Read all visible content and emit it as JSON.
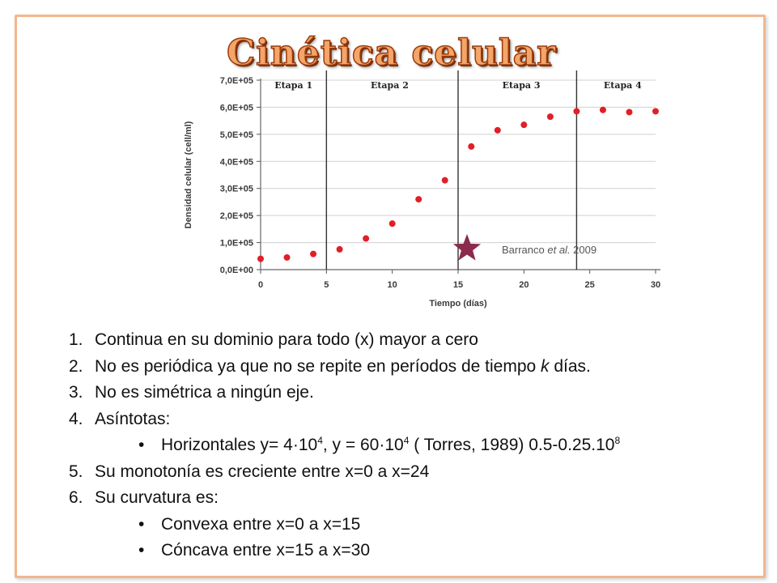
{
  "slide": {
    "title": "Cinética celular"
  },
  "chart_data": {
    "type": "scatter",
    "xlabel": "Tiempo (días)",
    "ylabel": "Densidad celular (cell/ml)",
    "xlim": [
      0,
      30
    ],
    "ylim": [
      0,
      700000
    ],
    "x_ticks": [
      "0",
      "5",
      "10",
      "15",
      "20",
      "25",
      "30"
    ],
    "y_ticks": [
      "0,0E+00",
      "1,0E+05",
      "2,0E+05",
      "3,0E+05",
      "4,0E+05",
      "5,0E+05",
      "6,0E+05",
      "7,0E+05"
    ],
    "grid": true,
    "marker_color": "#e01f26",
    "series": [
      {
        "x": [
          0,
          2,
          4,
          6,
          8,
          10,
          12,
          14,
          16,
          18,
          20,
          22,
          24,
          26,
          28,
          30
        ],
        "y": [
          40000,
          45000,
          58000,
          75000,
          115000,
          170000,
          260000,
          330000,
          455000,
          515000,
          535000,
          565000,
          585000,
          590000,
          582000,
          585000
        ]
      }
    ],
    "stage_boundaries": [
      5,
      15,
      24
    ],
    "stages": [
      {
        "label": "Etapa 1",
        "x": 2.5
      },
      {
        "label": "Etapa 2",
        "x": 9.8
      },
      {
        "label": "Etapa 3",
        "x": 19.8
      },
      {
        "label": "Etapa 4",
        "x": 27.5
      }
    ],
    "annotation": {
      "text_before": "Barranco ",
      "text_italic": "et al.",
      "text_after": " 2009",
      "star_color": "#8b2a4d"
    }
  },
  "list": {
    "item1": {
      "num": "1.",
      "text": "Continua en su dominio para todo (x) mayor a cero"
    },
    "item2": {
      "num": "2.",
      "before": "No es periódica ya que no se repite en períodos de tiempo ",
      "italic": "k",
      "after": " días."
    },
    "item3": {
      "num": "3.",
      "text": "No es simétrica a ningún eje."
    },
    "item4": {
      "num": "4.",
      "text": "Asíntotas:"
    },
    "item4_sub": {
      "bullet": "•",
      "t1": "Horizontales y= 4·10",
      "s1": "4",
      "t2": ", y = 60·10",
      "s2": "4",
      "t3": " ( Torres, 1989) 0.5-0.25.10",
      "s3": "8"
    },
    "item5": {
      "num": "5.",
      "text": "Su monotonía es creciente entre x=0 a x=24"
    },
    "item6": {
      "num": "6.",
      "text": "Su curvatura es:"
    },
    "item6_sub1": {
      "bullet": "•",
      "text": "Convexa entre x=0 a x=15"
    },
    "item6_sub2": {
      "bullet": "•",
      "text": "Cóncava entre x=15 a x=30"
    }
  }
}
